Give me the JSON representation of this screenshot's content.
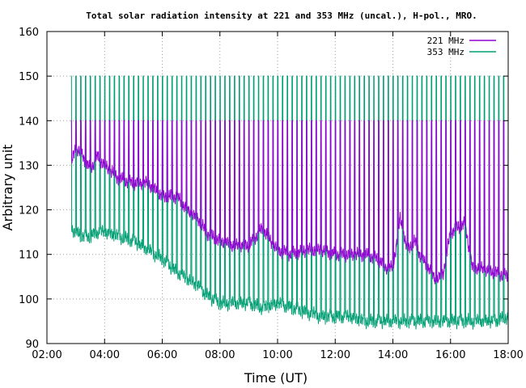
{
  "chart_data": {
    "type": "line",
    "title": "Total solar radiation intensity at 221 and 353 MHz (uncal.), H-pol., MRO.",
    "xlabel": "Time (UT)",
    "ylabel": "Arbitrary unit",
    "xlim": [
      "02:00",
      "18:00"
    ],
    "ylim": [
      90,
      160
    ],
    "x_ticks": [
      "02:00",
      "04:00",
      "06:00",
      "08:00",
      "10:00",
      "12:00",
      "14:00",
      "16:00",
      "18:00"
    ],
    "y_ticks": [
      90,
      100,
      110,
      120,
      130,
      140,
      150,
      160
    ],
    "grid": true,
    "legend_position": "top-right",
    "calibration_pulses": {
      "interval_minutes": 10,
      "start": "02:50",
      "end": "18:00",
      "peak_221": 140,
      "peak_353": 150
    },
    "series": [
      {
        "name": "221 MHz",
        "color": "#9400d3",
        "x": [
          "02:50",
          "03:00",
          "03:15",
          "03:30",
          "03:45",
          "04:00",
          "04:30",
          "05:00",
          "05:30",
          "06:00",
          "06:30",
          "07:00",
          "07:15",
          "07:30",
          "08:00",
          "08:30",
          "09:00",
          "09:30",
          "09:45",
          "10:00",
          "10:30",
          "11:00",
          "11:30",
          "12:00",
          "12:30",
          "13:00",
          "13:30",
          "13:45",
          "14:00",
          "14:15",
          "14:30",
          "14:45",
          "15:00",
          "15:15",
          "15:30",
          "15:45",
          "16:00",
          "16:15",
          "16:30",
          "16:45",
          "17:00",
          "17:30",
          "18:00"
        ],
        "y": [
          130,
          134,
          132,
          129,
          132,
          130,
          127,
          126,
          126,
          123,
          123,
          119,
          118,
          115,
          113,
          112,
          112,
          116,
          113,
          111,
          110,
          111,
          111,
          110,
          110,
          110,
          109,
          107,
          107,
          118,
          111,
          113,
          109,
          107,
          104,
          106,
          115,
          116,
          117,
          107,
          107,
          106,
          105
        ]
      },
      {
        "name": "353 MHz",
        "color": "#009e73",
        "x": [
          "02:50",
          "03:00",
          "03:15",
          "03:30",
          "03:45",
          "04:00",
          "04:30",
          "05:00",
          "05:30",
          "06:00",
          "06:30",
          "07:00",
          "07:15",
          "07:30",
          "08:00",
          "08:30",
          "09:00",
          "09:30",
          "10:00",
          "10:30",
          "11:00",
          "11:30",
          "12:00",
          "12:30",
          "13:00",
          "13:30",
          "14:00",
          "14:30",
          "15:00",
          "15:30",
          "16:00",
          "16:30",
          "17:00",
          "17:30",
          "18:00"
        ],
        "y": [
          116,
          115,
          114,
          114,
          115,
          115,
          114,
          113,
          111,
          109,
          106,
          104,
          103,
          101,
          99,
          99,
          99,
          98,
          99,
          98,
          97,
          96,
          96,
          96,
          95,
          95,
          95,
          95,
          95,
          95,
          95,
          95,
          95,
          95,
          96
        ]
      }
    ]
  }
}
